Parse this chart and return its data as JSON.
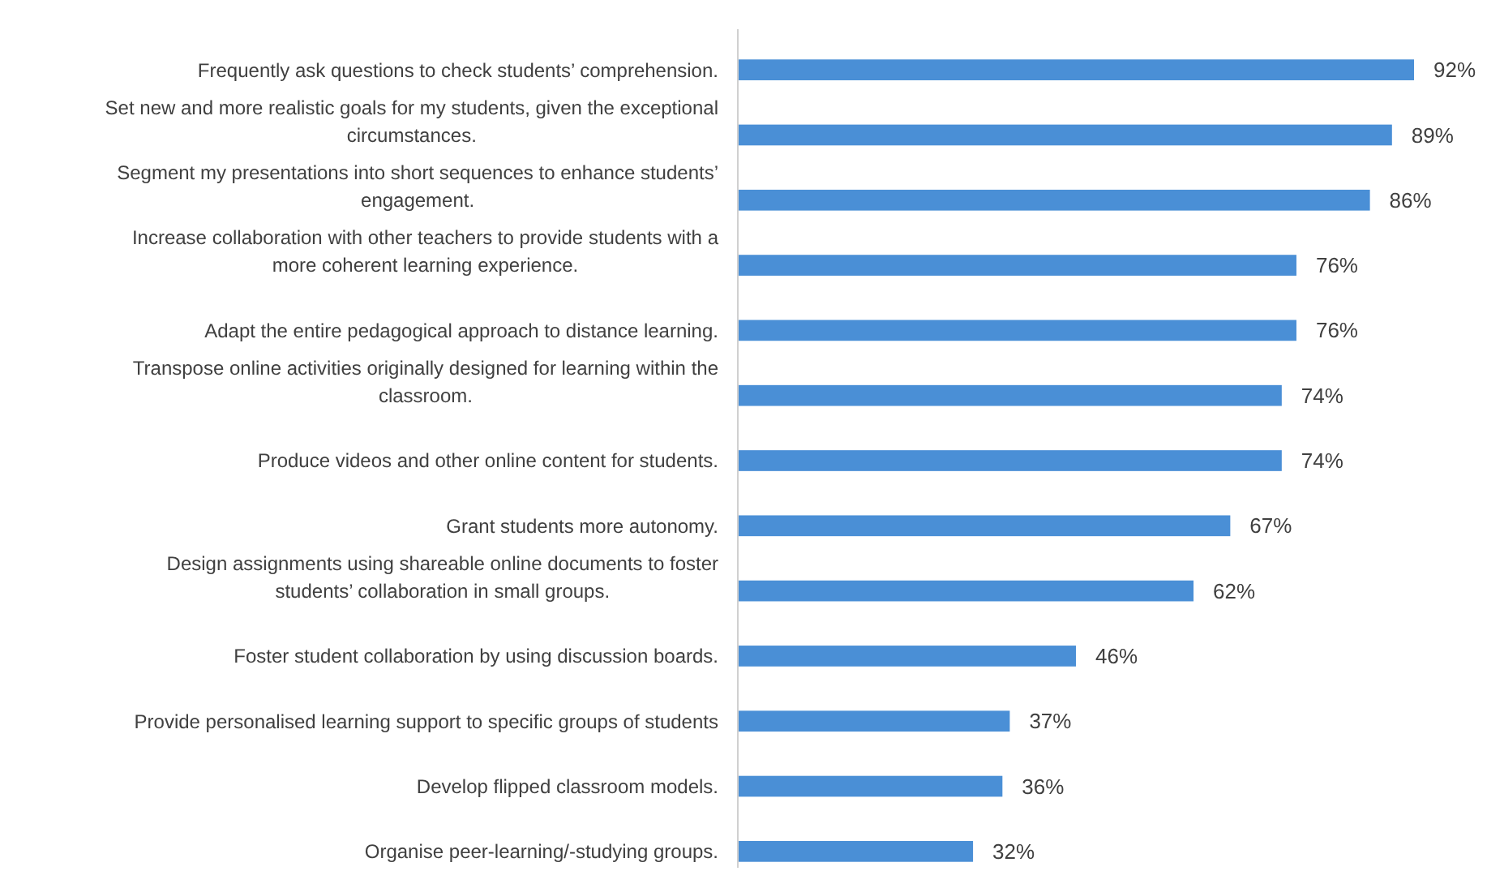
{
  "chart_data": {
    "type": "bar",
    "orientation": "horizontal",
    "categories": [
      "Frequently ask questions to check students’ comprehension.",
      "Set new and more realistic goals for my students, given the exceptional circumstances.",
      "Segment my presentations into short sequences to enhance students’ engagement.",
      "Increase collaboration with other teachers to provide students with a more coherent learning experience.",
      "Adapt the entire pedagogical approach to distance learning.",
      "Transpose online activities originally designed for learning within the classroom.",
      "Produce videos and other online content for students.",
      "Grant students more autonomy.",
      "Design assignments using shareable online documents to foster students’ collaboration in small groups.",
      "Foster student collaboration by using discussion boards.",
      "Provide personalised learning support to specific groups of students",
      "Develop flipped classroom models.",
      "Organise peer-learning/-studying groups."
    ],
    "values": [
      92,
      89,
      86,
      76,
      76,
      74,
      74,
      67,
      62,
      46,
      37,
      36,
      32
    ],
    "value_labels": [
      "92%",
      "89%",
      "86%",
      "76%",
      "76%",
      "74%",
      "74%",
      "67%",
      "62%",
      "46%",
      "37%",
      "36%",
      "32%"
    ],
    "color": "#4a8fd6",
    "tick_labels": false
  }
}
